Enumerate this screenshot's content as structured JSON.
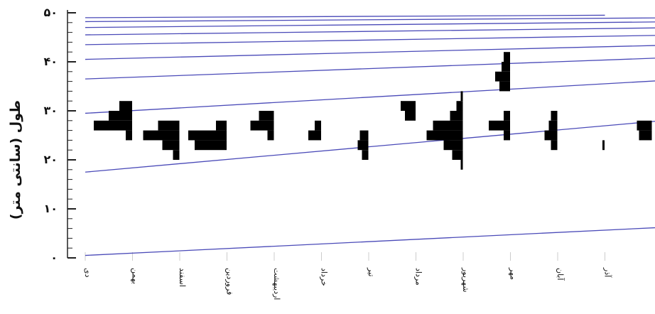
{
  "chart_data": {
    "type": "bar",
    "orientation": "horizontal-histograms-per-month",
    "title": "",
    "xlabel": "",
    "ylabel": "طول (سانتی متر)",
    "ylim": [
      0,
      50
    ],
    "y_ticks": [
      "۰",
      "۱۰",
      "۲۰",
      "۳۰",
      "۴۰",
      "۵۰"
    ],
    "y_tick_values": [
      0,
      10,
      20,
      30,
      40,
      50
    ],
    "bin_width_cm": 2,
    "categories": [
      "دی",
      "بهمن",
      "اسفند",
      "فروردین",
      "اردیبهشت",
      "خرداد",
      "تیر",
      "مرداد",
      "شهریور",
      "مهر",
      "آبان",
      "آذر"
    ],
    "series": [
      {
        "values": [
          {
            "bin": [
              24,
              26
            ],
            "freq": 0.15
          },
          {
            "bin": [
              26,
              28
            ],
            "freq": 0.9
          },
          {
            "bin": [
              28,
              30
            ],
            "freq": 0.55
          },
          {
            "bin": [
              30,
              32
            ],
            "freq": 0.3
          }
        ]
      },
      {
        "values": [
          {
            "bin": [
              20,
              22
            ],
            "freq": 0.15
          },
          {
            "bin": [
              22,
              24
            ],
            "freq": 0.4
          },
          {
            "bin": [
              24,
              26
            ],
            "freq": 0.85
          },
          {
            "bin": [
              26,
              28
            ],
            "freq": 0.5
          }
        ]
      },
      {
        "values": [
          {
            "bin": [
              22,
              24
            ],
            "freq": 0.75
          },
          {
            "bin": [
              24,
              26
            ],
            "freq": 0.9
          },
          {
            "bin": [
              26,
              28
            ],
            "freq": 0.25
          }
        ]
      },
      {
        "values": [
          {
            "bin": [
              24,
              26
            ],
            "freq": 0.15
          },
          {
            "bin": [
              26,
              28
            ],
            "freq": 0.55
          },
          {
            "bin": [
              28,
              30
            ],
            "freq": 0.35
          }
        ]
      },
      {
        "values": [
          {
            "bin": [
              24,
              26
            ],
            "freq": 0.3
          },
          {
            "bin": [
              26,
              28
            ],
            "freq": 0.15
          }
        ]
      },
      {
        "values": [
          {
            "bin": [
              20,
              22
            ],
            "freq": 0.15
          },
          {
            "bin": [
              22,
              24
            ],
            "freq": 0.25
          },
          {
            "bin": [
              24,
              26
            ],
            "freq": 0.2
          }
        ]
      },
      {
        "values": [
          {
            "bin": [
              28,
              30
            ],
            "freq": 0.25
          },
          {
            "bin": [
              30,
              32
            ],
            "freq": 0.35
          }
        ]
      },
      {
        "values": [
          {
            "bin": [
              18,
              20
            ],
            "freq": 0.05
          },
          {
            "bin": [
              20,
              22
            ],
            "freq": 0.25
          },
          {
            "bin": [
              22,
              24
            ],
            "freq": 0.45
          },
          {
            "bin": [
              24,
              26
            ],
            "freq": 0.85
          },
          {
            "bin": [
              26,
              28
            ],
            "freq": 0.7
          },
          {
            "bin": [
              28,
              30
            ],
            "freq": 0.3
          },
          {
            "bin": [
              30,
              32
            ],
            "freq": 0.15
          },
          {
            "bin": [
              32,
              34
            ],
            "freq": 0.05
          }
        ]
      },
      {
        "values": [
          {
            "bin": [
              24,
              26
            ],
            "freq": 0.15
          },
          {
            "bin": [
              26,
              28
            ],
            "freq": 0.5
          },
          {
            "bin": [
              28,
              30
            ],
            "freq": 0.15
          },
          {
            "bin": [
              34,
              36
            ],
            "freq": 0.25
          },
          {
            "bin": [
              36,
              38
            ],
            "freq": 0.35
          },
          {
            "bin": [
              38,
              40
            ],
            "freq": 0.2
          },
          {
            "bin": [
              40,
              42
            ],
            "freq": 0.15
          }
        ]
      },
      {
        "values": [
          {
            "bin": [
              22,
              24
            ],
            "freq": 0.15
          },
          {
            "bin": [
              24,
              26
            ],
            "freq": 0.3
          },
          {
            "bin": [
              26,
              28
            ],
            "freq": 0.2
          },
          {
            "bin": [
              28,
              30
            ],
            "freq": 0.15
          }
        ]
      },
      {
        "values": [
          {
            "bin": [
              22,
              24
            ],
            "freq": 0.05
          }
        ]
      },
      {
        "values": [
          {
            "bin": [
              24,
              26
            ],
            "freq": 0.3
          },
          {
            "bin": [
              26,
              28
            ],
            "freq": 0.35
          }
        ]
      }
    ],
    "growth_curves": [
      {
        "values": [
          [
            0,
            0.5
          ],
          [
            12.8,
            6.5
          ]
        ]
      },
      {
        "values": [
          [
            0,
            17.5
          ],
          [
            12.8,
            28.5
          ]
        ]
      },
      {
        "values": [
          [
            0,
            29.5
          ],
          [
            12.8,
            36.5
          ]
        ]
      },
      {
        "values": [
          [
            0,
            36.5
          ],
          [
            12.8,
            41
          ]
        ]
      },
      {
        "values": [
          [
            0,
            40.5
          ],
          [
            12.8,
            43.5
          ]
        ]
      },
      {
        "values": [
          [
            0,
            43.5
          ],
          [
            12.8,
            45.5
          ]
        ]
      },
      {
        "values": [
          [
            0,
            45.5
          ],
          [
            12.8,
            47
          ]
        ]
      },
      {
        "values": [
          [
            0,
            47
          ],
          [
            12.8,
            48.2
          ]
        ]
      },
      {
        "values": [
          [
            0,
            48.2
          ],
          [
            12.8,
            49
          ]
        ]
      },
      {
        "values": [
          [
            0,
            49
          ],
          [
            11,
            49.5
          ]
        ]
      }
    ],
    "colors": {
      "curve": "#4a4ab8",
      "bar": "#000000",
      "axis": "#222222"
    },
    "grid": false
  }
}
